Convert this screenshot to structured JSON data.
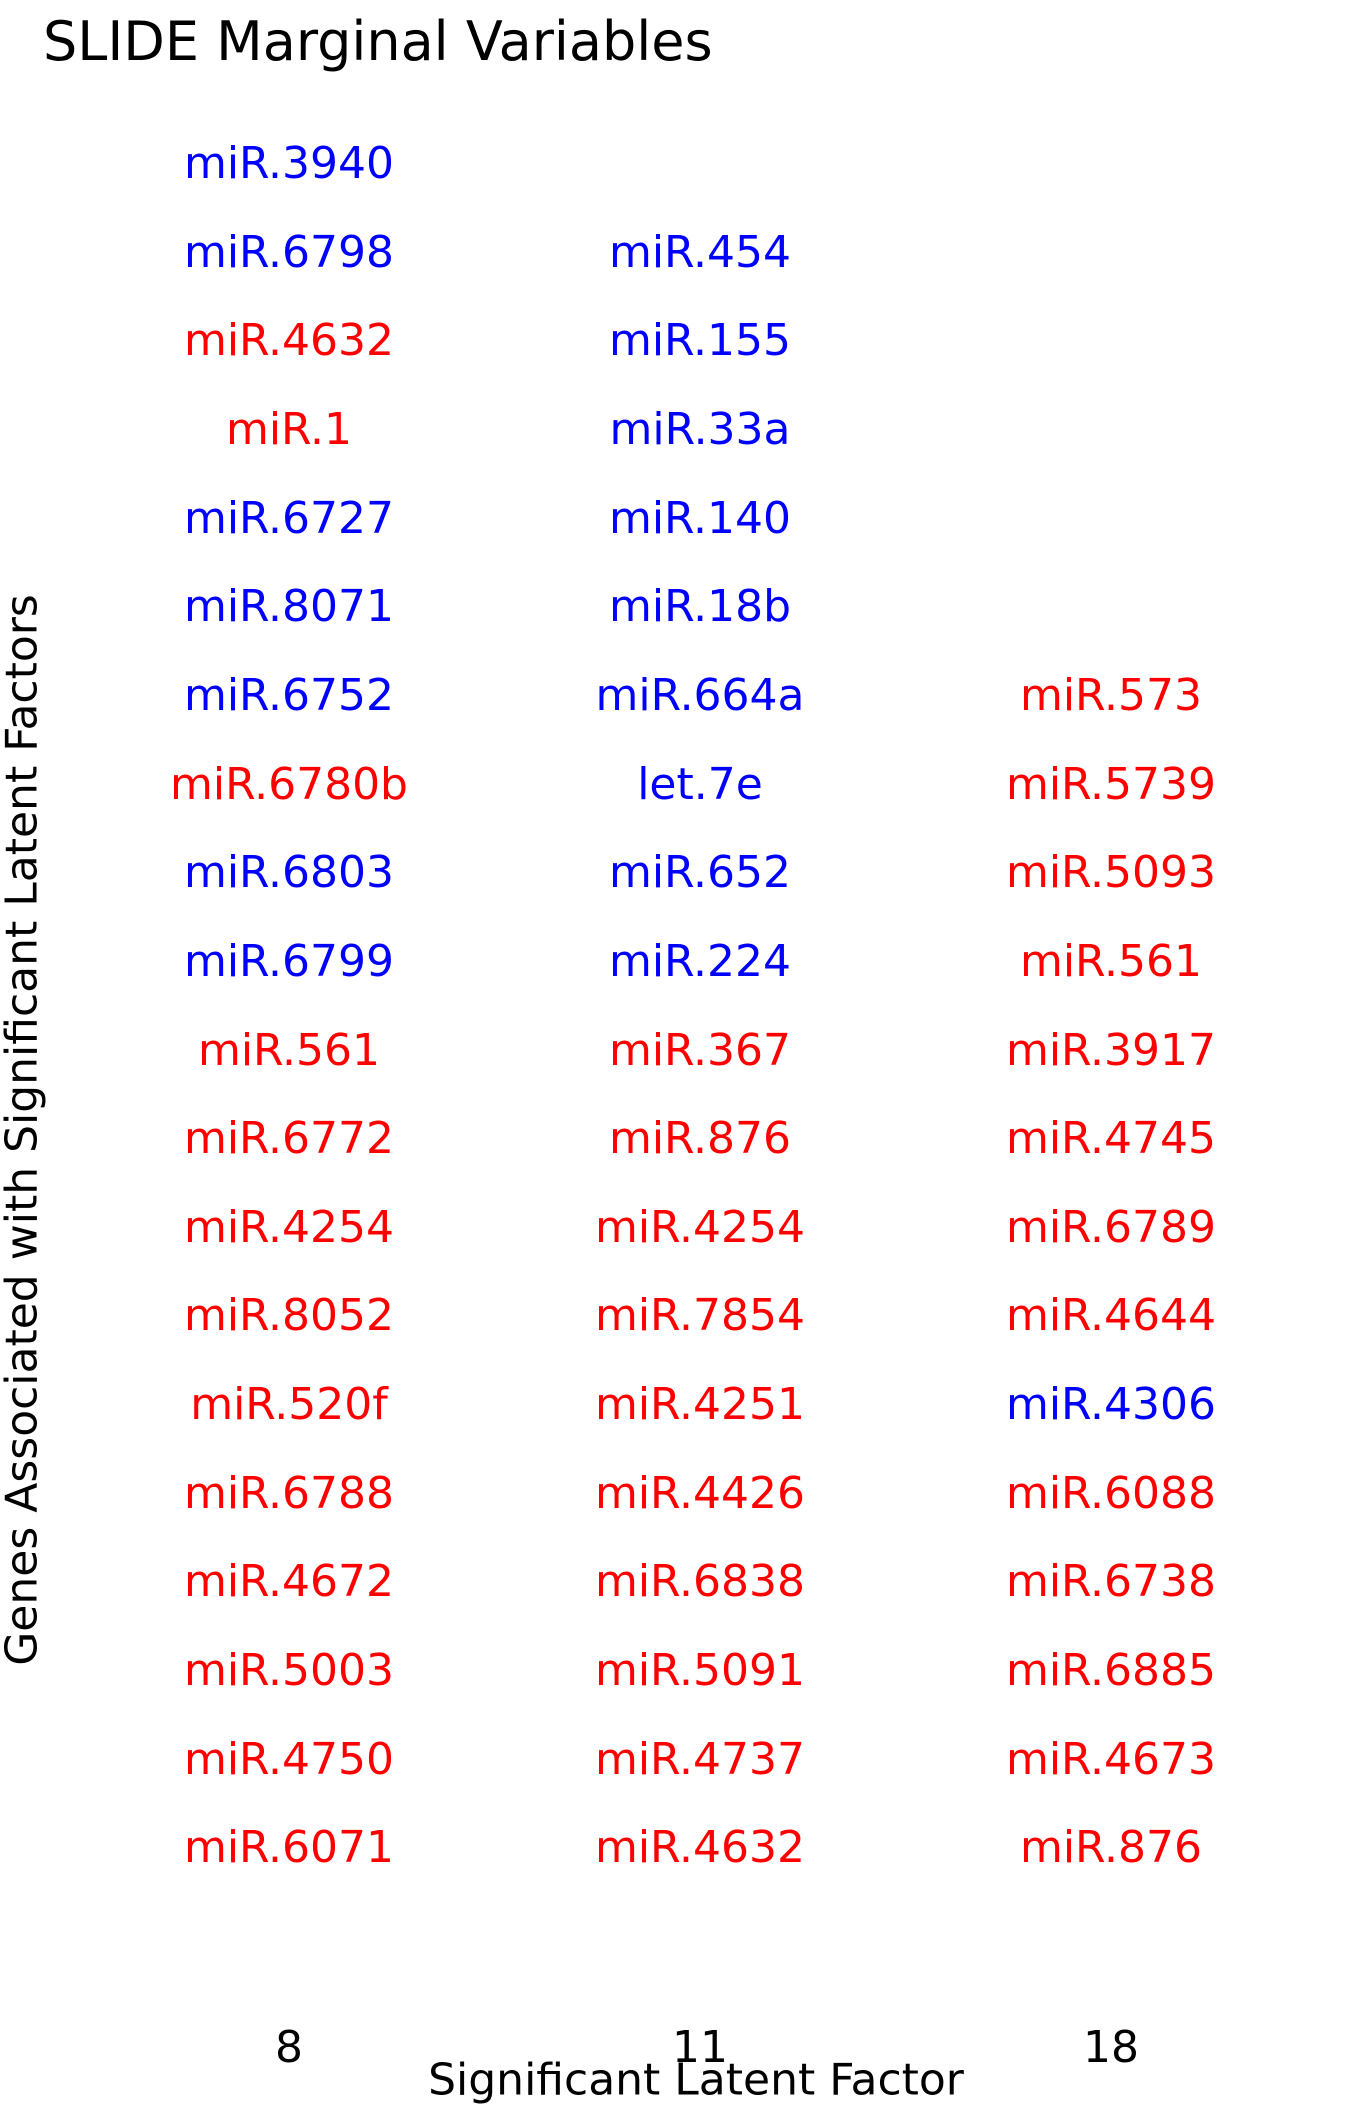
{
  "chart_data": {
    "type": "table",
    "title": "SLIDE Marginal Variables",
    "xlabel": "Significant Latent Factor",
    "ylabel": "Genes Associated with Significant Latent Factors",
    "colors": {
      "blue": "#0000ff",
      "red": "#ff0000"
    },
    "columns": [
      {
        "factor": "8",
        "genes": [
          {
            "name": "miR.3940",
            "color": "blue"
          },
          {
            "name": "miR.6798",
            "color": "blue"
          },
          {
            "name": "miR.4632",
            "color": "red"
          },
          {
            "name": "miR.1",
            "color": "red"
          },
          {
            "name": "miR.6727",
            "color": "blue"
          },
          {
            "name": "miR.8071",
            "color": "blue"
          },
          {
            "name": "miR.6752",
            "color": "blue"
          },
          {
            "name": "miR.6780b",
            "color": "red"
          },
          {
            "name": "miR.6803",
            "color": "blue"
          },
          {
            "name": "miR.6799",
            "color": "blue"
          },
          {
            "name": "miR.561",
            "color": "red"
          },
          {
            "name": "miR.6772",
            "color": "red"
          },
          {
            "name": "miR.4254",
            "color": "red"
          },
          {
            "name": "miR.8052",
            "color": "red"
          },
          {
            "name": "miR.520f",
            "color": "red"
          },
          {
            "name": "miR.6788",
            "color": "red"
          },
          {
            "name": "miR.4672",
            "color": "red"
          },
          {
            "name": "miR.5003",
            "color": "red"
          },
          {
            "name": "miR.4750",
            "color": "red"
          },
          {
            "name": "miR.6071",
            "color": "red"
          }
        ]
      },
      {
        "factor": "11",
        "genes": [
          {
            "name": "miR.454",
            "color": "blue"
          },
          {
            "name": "miR.155",
            "color": "blue"
          },
          {
            "name": "miR.33a",
            "color": "blue"
          },
          {
            "name": "miR.140",
            "color": "blue"
          },
          {
            "name": "miR.18b",
            "color": "blue"
          },
          {
            "name": "miR.664a",
            "color": "blue"
          },
          {
            "name": "let.7e",
            "color": "blue"
          },
          {
            "name": "miR.652",
            "color": "blue"
          },
          {
            "name": "miR.224",
            "color": "blue"
          },
          {
            "name": "miR.367",
            "color": "red"
          },
          {
            "name": "miR.876",
            "color": "red"
          },
          {
            "name": "miR.4254",
            "color": "red"
          },
          {
            "name": "miR.7854",
            "color": "red"
          },
          {
            "name": "miR.4251",
            "color": "red"
          },
          {
            "name": "miR.4426",
            "color": "red"
          },
          {
            "name": "miR.6838",
            "color": "red"
          },
          {
            "name": "miR.5091",
            "color": "red"
          },
          {
            "name": "miR.4737",
            "color": "red"
          },
          {
            "name": "miR.4632",
            "color": "red"
          }
        ]
      },
      {
        "factor": "18",
        "genes": [
          {
            "name": "miR.573",
            "color": "red"
          },
          {
            "name": "miR.5739",
            "color": "red"
          },
          {
            "name": "miR.5093",
            "color": "red"
          },
          {
            "name": "miR.561",
            "color": "red"
          },
          {
            "name": "miR.3917",
            "color": "red"
          },
          {
            "name": "miR.4745",
            "color": "red"
          },
          {
            "name": "miR.6789",
            "color": "red"
          },
          {
            "name": "miR.4644",
            "color": "red"
          },
          {
            "name": "miR.4306",
            "color": "blue"
          },
          {
            "name": "miR.6088",
            "color": "red"
          },
          {
            "name": "miR.6738",
            "color": "red"
          },
          {
            "name": "miR.6885",
            "color": "red"
          },
          {
            "name": "miR.4673",
            "color": "red"
          },
          {
            "name": "miR.876",
            "color": "red"
          }
        ]
      }
    ]
  }
}
